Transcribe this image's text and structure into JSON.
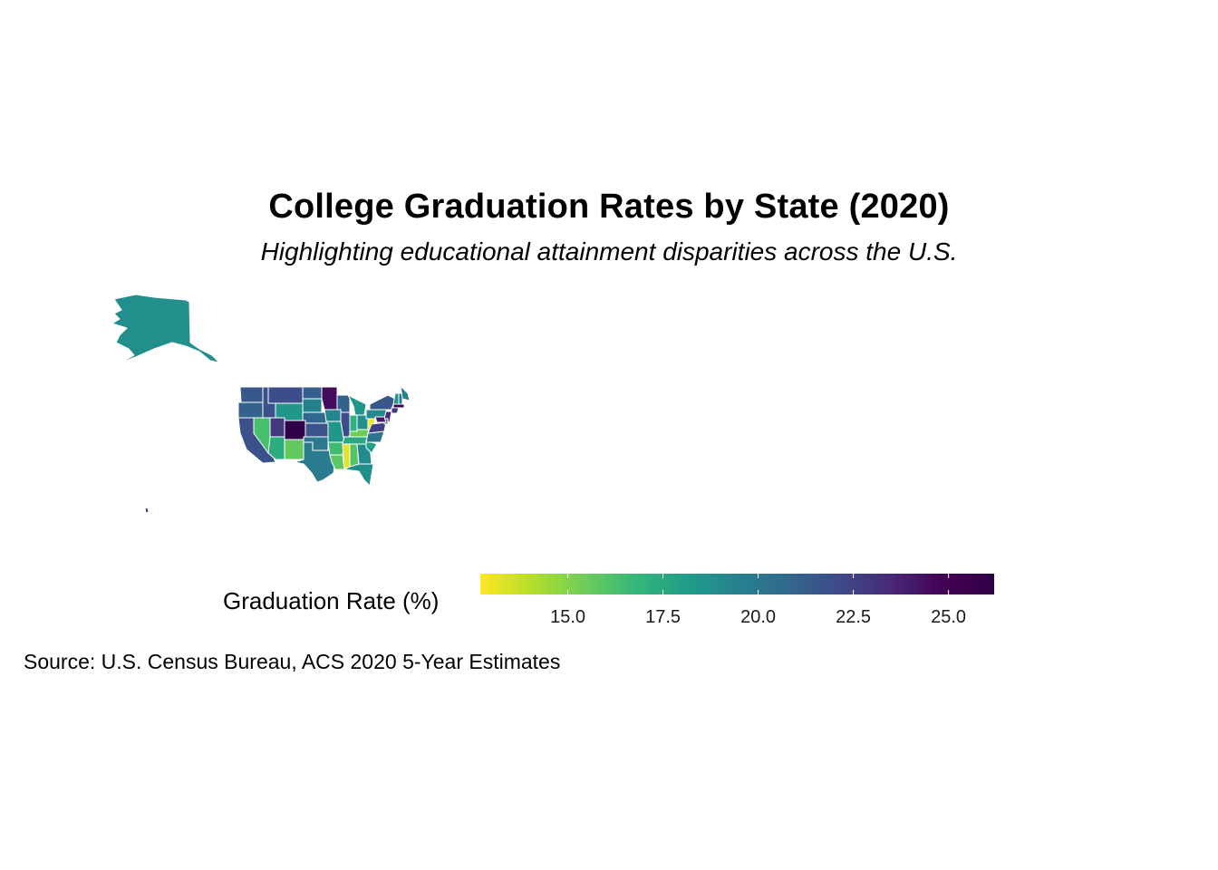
{
  "title": "College Graduation Rates by State (2020)",
  "subtitle": "Highlighting educational attainment disparities across the U.S.",
  "caption": "Source: U.S. Census Bureau, ACS 2020 5-Year Estimates",
  "legend": {
    "title": "Graduation Rate (%)",
    "min": 12.7,
    "max": 26.2,
    "ticks": [
      15.0,
      17.5,
      20.0,
      22.5,
      25.0
    ],
    "tick_labels": [
      "15.0",
      "17.5",
      "20.0",
      "22.5",
      "25.0"
    ],
    "palette": [
      "#fde725",
      "#b5de2b",
      "#6ece58",
      "#35b779",
      "#1f9e89",
      "#26828e",
      "#31688e",
      "#3e4989",
      "#482878",
      "#440154",
      "#2d0046"
    ]
  },
  "chart_data": {
    "type": "choropleth",
    "title": "College Graduation Rates by State (2020)",
    "subtitle": "Highlighting educational attainment disparities across the U.S.",
    "value_label": "Graduation Rate (%)",
    "regions": [
      {
        "name": "AK",
        "value": 18.8
      },
      {
        "name": "HI",
        "value": 23.5
      },
      {
        "name": "WA",
        "value": 21.5
      },
      {
        "name": "OR",
        "value": 21.0
      },
      {
        "name": "CA",
        "value": 21.8
      },
      {
        "name": "ID",
        "value": 21.8
      },
      {
        "name": "NV",
        "value": 16.3
      },
      {
        "name": "MT",
        "value": 22.0
      },
      {
        "name": "WY",
        "value": 18.5
      },
      {
        "name": "UT",
        "value": 22.8
      },
      {
        "name": "CO",
        "value": 26.0
      },
      {
        "name": "AZ",
        "value": 17.3
      },
      {
        "name": "NM",
        "value": 15.7
      },
      {
        "name": "ND",
        "value": 21.2
      },
      {
        "name": "SD",
        "value": 19.5
      },
      {
        "name": "NE",
        "value": 20.8
      },
      {
        "name": "KS",
        "value": 21.7
      },
      {
        "name": "OK",
        "value": 19.9
      },
      {
        "name": "TX",
        "value": 19.8
      },
      {
        "name": "MN",
        "value": 24.5
      },
      {
        "name": "IA",
        "value": 19.3
      },
      {
        "name": "MO",
        "value": 18.5
      },
      {
        "name": "AR",
        "value": 16.5
      },
      {
        "name": "LA",
        "value": 15.8
      },
      {
        "name": "WI",
        "value": 21.0
      },
      {
        "name": "IL",
        "value": 22.0
      },
      {
        "name": "MS",
        "value": 13.2
      },
      {
        "name": "AL",
        "value": 16.0
      },
      {
        "name": "TN",
        "value": 17.5
      },
      {
        "name": "KY",
        "value": 15.5
      },
      {
        "name": "MI",
        "value": 18.5
      },
      {
        "name": "IN",
        "value": 17.0
      },
      {
        "name": "OH",
        "value": 18.8
      },
      {
        "name": "WV",
        "value": 12.8
      },
      {
        "name": "GA",
        "value": 19.0
      },
      {
        "name": "FL",
        "value": 18.8
      },
      {
        "name": "SC",
        "value": 18.0
      },
      {
        "name": "NC",
        "value": 20.2
      },
      {
        "name": "VA",
        "value": 22.5
      },
      {
        "name": "PA",
        "value": 19.0
      },
      {
        "name": "NY",
        "value": 21.5
      },
      {
        "name": "VT",
        "value": 18.5
      },
      {
        "name": "NH",
        "value": 20.0
      },
      {
        "name": "ME",
        "value": 19.5
      },
      {
        "name": "MA",
        "value": 25.5
      },
      {
        "name": "CT",
        "value": 23.0
      },
      {
        "name": "NJ",
        "value": 23.5
      },
      {
        "name": "DE",
        "value": 20.5
      },
      {
        "name": "MD",
        "value": 24.0
      }
    ]
  }
}
